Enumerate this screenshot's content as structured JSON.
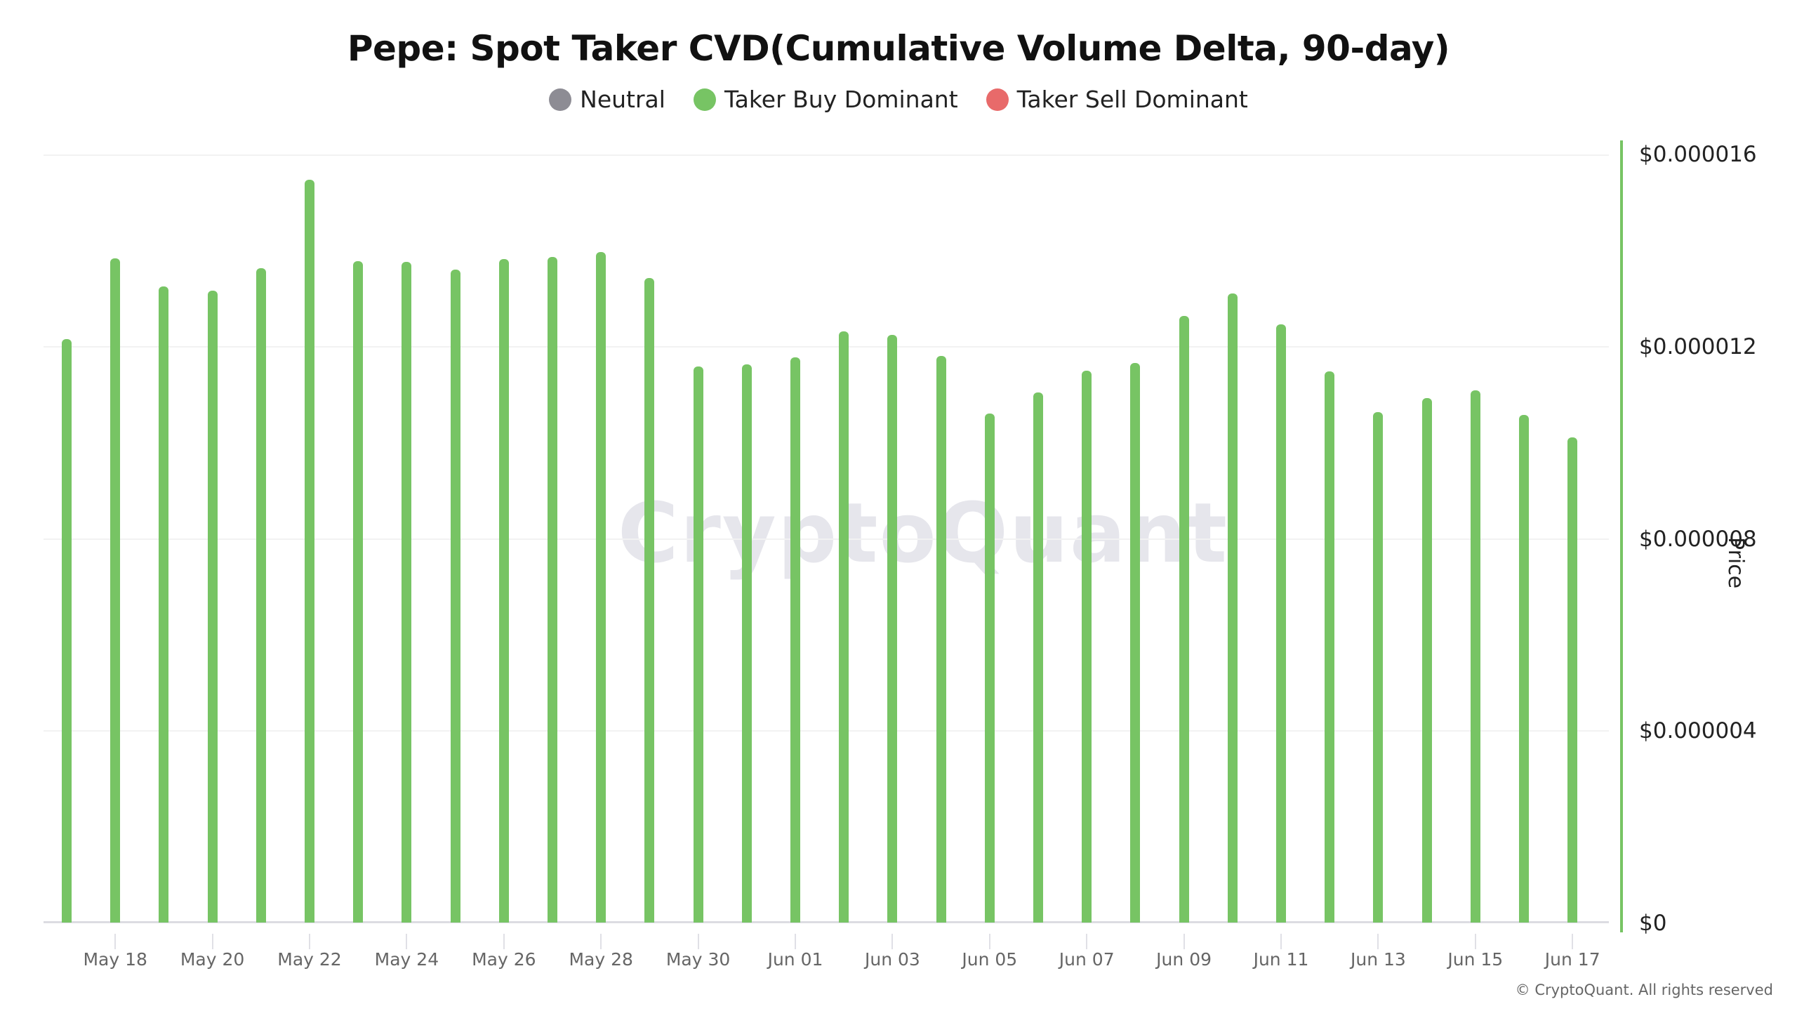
{
  "header": {
    "title": "Pepe: Spot Taker CVD(Cumulative Volume Delta, 90-day)"
  },
  "legend": [
    {
      "label": "Neutral",
      "color": "#8d8c94"
    },
    {
      "label": "Taker Buy Dominant",
      "color": "#77c464"
    },
    {
      "label": "Taker Sell Dominant",
      "color": "#e86a6a"
    }
  ],
  "watermark": "CryptoQuant",
  "y_axis": {
    "title": "Price",
    "ticks": [
      "$0.000016",
      "$0.000012",
      "$0.000008",
      "$0.000004",
      "$0"
    ]
  },
  "x_axis": {
    "ticks": [
      "May 18",
      "May 20",
      "May 22",
      "May 24",
      "May 26",
      "May 28",
      "May 30",
      "Jun 01",
      "Jun 03",
      "Jun 05",
      "Jun 07",
      "Jun 09",
      "Jun 11",
      "Jun 13",
      "Jun 15",
      "Jun 17"
    ]
  },
  "footer": "© CryptoQuant. All rights reserved",
  "chart_data": {
    "type": "bar",
    "title": "Pepe: Spot Taker CVD(Cumulative Volume Delta, 90-day)",
    "xlabel": "",
    "ylabel": "Price",
    "ylim": [
      0,
      1.6e-05
    ],
    "y_ticks": [
      0,
      4e-06,
      8e-06,
      1.2e-05,
      1.6e-05
    ],
    "grid": true,
    "legend_position": "top",
    "categories": [
      "May 17",
      "May 18",
      "May 19",
      "May 20",
      "May 21",
      "May 22",
      "May 23",
      "May 24",
      "May 25",
      "May 26",
      "May 27",
      "May 28",
      "May 29",
      "May 30",
      "May 31",
      "Jun 01",
      "Jun 02",
      "Jun 03",
      "Jun 04",
      "Jun 05",
      "Jun 06",
      "Jun 07",
      "Jun 08",
      "Jun 09",
      "Jun 10",
      "Jun 11",
      "Jun 12",
      "Jun 13",
      "Jun 14",
      "Jun 15",
      "Jun 16",
      "Jun 17"
    ],
    "series": [
      {
        "name": "Price (Taker Buy Dominant)",
        "color": "#77c464",
        "values": [
          1.215e-05,
          1.383e-05,
          1.325e-05,
          1.316e-05,
          1.363e-05,
          1.548e-05,
          1.377e-05,
          1.376e-05,
          1.36e-05,
          1.382e-05,
          1.386e-05,
          1.396e-05,
          1.342e-05,
          1.158e-05,
          1.162e-05,
          1.178e-05,
          1.232e-05,
          1.224e-05,
          1.18e-05,
          1.061e-05,
          1.104e-05,
          1.149e-05,
          1.165e-05,
          1.263e-05,
          1.31e-05,
          1.246e-05,
          1.148e-05,
          1.063e-05,
          1.092e-05,
          1.108e-05,
          1.057e-05,
          1.01e-05
        ]
      }
    ],
    "bar_category": [
      "Taker Buy Dominant",
      "Taker Buy Dominant",
      "Taker Buy Dominant",
      "Taker Buy Dominant",
      "Taker Buy Dominant",
      "Taker Buy Dominant",
      "Taker Buy Dominant",
      "Taker Buy Dominant",
      "Taker Buy Dominant",
      "Taker Buy Dominant",
      "Taker Buy Dominant",
      "Taker Buy Dominant",
      "Taker Buy Dominant",
      "Taker Buy Dominant",
      "Taker Buy Dominant",
      "Taker Buy Dominant",
      "Taker Buy Dominant",
      "Taker Buy Dominant",
      "Taker Buy Dominant",
      "Taker Buy Dominant",
      "Taker Buy Dominant",
      "Taker Buy Dominant",
      "Taker Buy Dominant",
      "Taker Buy Dominant",
      "Taker Buy Dominant",
      "Taker Buy Dominant",
      "Taker Buy Dominant",
      "Taker Buy Dominant",
      "Taker Buy Dominant",
      "Taker Buy Dominant",
      "Taker Buy Dominant",
      "Taker Buy Dominant"
    ]
  }
}
